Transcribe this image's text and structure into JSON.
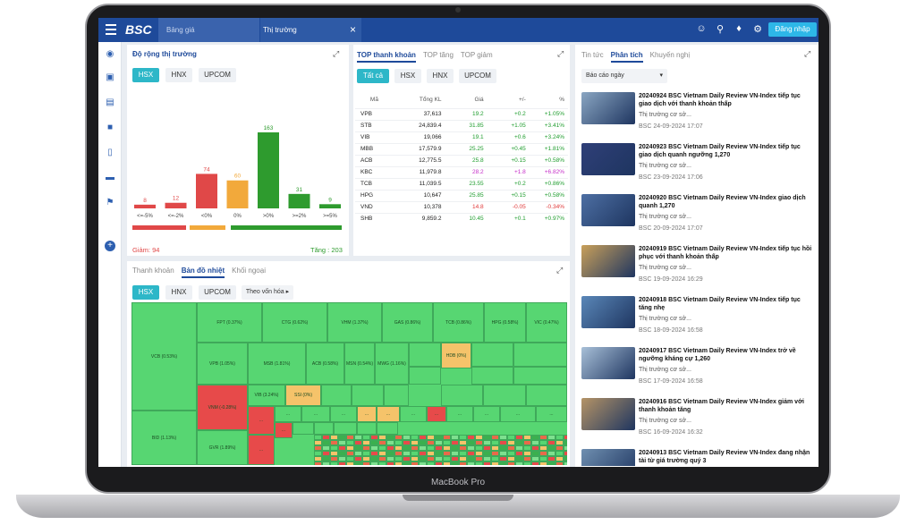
{
  "device": {
    "label": "MacBook Pro"
  },
  "topbar": {
    "logo": "BSC",
    "tabs": [
      {
        "label": "Bảng giá"
      },
      {
        "label": "Thị trường"
      }
    ],
    "close_icon": "close-icon",
    "icons": [
      "user-icon",
      "search-icon",
      "bell-icon",
      "gear-icon"
    ],
    "login_label": "Đăng nhập",
    "colors": {
      "bar": "#1e4a9a",
      "accent": "#2db7e8"
    }
  },
  "market_breadth": {
    "title": "Độ rộng thị trường",
    "exchanges": [
      "HSX",
      "HNX",
      "UPCOM"
    ],
    "categories": [
      "<=-5%",
      "<=-2%",
      "<0%",
      "0%",
      ">0%",
      ">=2%",
      ">=5%"
    ],
    "values": [
      8,
      12,
      74,
      60,
      163,
      31,
      9
    ],
    "decline_label": "Giảm: 94",
    "advance_label": "Tăng : 203"
  },
  "chart_data": {
    "type": "bar",
    "title": "Độ rộng thị trường",
    "categories": [
      "<=-5%",
      "<=-2%",
      "<0%",
      "0%",
      ">0%",
      ">=2%",
      ">=5%"
    ],
    "values": [
      8,
      12,
      74,
      60,
      163,
      31,
      9
    ],
    "colors": [
      "#e04848",
      "#e04848",
      "#e04848",
      "#f2a93b",
      "#2e9b2e",
      "#2e9b2e",
      "#2e9b2e"
    ]
  },
  "top_stocks": {
    "tabs": [
      "TOP thanh khoản",
      "TOP tăng",
      "TOP giảm"
    ],
    "filters": [
      "Tất cả",
      "HSX",
      "HNX",
      "UPCOM"
    ],
    "columns": [
      "Mã",
      "Tổng KL",
      "Giá",
      "+/-",
      "%"
    ],
    "rows": [
      [
        "VPB",
        "37,613",
        "19.2",
        "+0.2",
        "+1.05%",
        "g"
      ],
      [
        "STB",
        "24,839.4",
        "31.85",
        "+1.05",
        "+3.41%",
        "g"
      ],
      [
        "VIB",
        "19,066",
        "19.1",
        "+0.6",
        "+3.24%",
        "g"
      ],
      [
        "MBB",
        "17,579.9",
        "25.25",
        "+0.45",
        "+1.81%",
        "g"
      ],
      [
        "ACB",
        "12,775.5",
        "25.8",
        "+0.15",
        "+0.58%",
        "g"
      ],
      [
        "KBC",
        "11,979.8",
        "28.2",
        "+1.8",
        "+6.82%",
        "p"
      ],
      [
        "TCB",
        "11,039.5",
        "23.55",
        "+0.2",
        "+0.86%",
        "g"
      ],
      [
        "HPG",
        "10,647",
        "25.85",
        "+0.15",
        "+0.58%",
        "g"
      ],
      [
        "VND",
        "10,378",
        "14.8",
        "-0.05",
        "-0.34%",
        "r"
      ],
      [
        "SHB",
        "9,859.2",
        "10.45",
        "+0.1",
        "+0.97%",
        "g"
      ]
    ]
  },
  "heatmap": {
    "tabs": [
      "Thanh khoản",
      "Bản đồ nhiệt",
      "Khối ngoại"
    ],
    "exchanges": [
      "HSX",
      "HNX",
      "UPCOM"
    ],
    "sort_label": "Theo vốn hóa",
    "cells": [
      "VCB (0.53%)",
      "FPT (0.37%)",
      "CTG (0.62%)",
      "VHM (1.37%)",
      "GAS (0.86%)",
      "TCB (0.86%)",
      "HPG (0.58%)",
      "VIC (0.47%)",
      "VPB (1.05%)",
      "MSB (1.81%)",
      "ACB (0.58%)",
      "MSN (0.54%)",
      "MWG (1.16%)",
      "HDB (0%)",
      "VIB (3.24%)",
      "SSI (0%)",
      "VNM (-0.28%)",
      "BID (1.13%)",
      "GVR (1.89%)"
    ],
    "ellipsis": "..."
  },
  "news": {
    "tabs": [
      "Tin tức",
      "Phân tích",
      "Khuyến nghị"
    ],
    "filter_label": "Báo cáo ngày",
    "items": [
      {
        "title": "20240924 BSC Vietnam Daily Review VN-Index tiếp tục giao dịch với thanh khoản thấp",
        "cat": "Thị trường cơ sở...",
        "meta": "BSC  24-09-2024 17:07"
      },
      {
        "title": "20240923 BSC Vietnam Daily Review VN-Index tiếp tục giao dịch quanh ngưỡng 1,270",
        "cat": "Thị trường cơ sở...",
        "meta": "BSC  23-09-2024 17:06"
      },
      {
        "title": "20240920 BSC Vietnam Daily Review VN-Index giao dịch quanh 1,270",
        "cat": "Thị trường cơ sở...",
        "meta": "BSC  20-09-2024 17:07"
      },
      {
        "title": "20240919 BSC Vietnam Daily Review VN-Index tiếp tục hồi phục với thanh khoản thấp",
        "cat": "Thị trường cơ sở...",
        "meta": "BSC  19-09-2024 16:29"
      },
      {
        "title": "20240918 BSC Vietnam Daily Review VN-Index tiếp tục tăng nhẹ",
        "cat": "Thị trường cơ sở...",
        "meta": "BSC  18-09-2024 16:58"
      },
      {
        "title": "20240917 BSC Vietnam Daily Review VN-Index trở về ngưỡng kháng cự 1,260",
        "cat": "Thị trường cơ sở...",
        "meta": "BSC  17-09-2024 16:58"
      },
      {
        "title": "20240916 BSC Vietnam Daily Review VN-Index giảm với thanh khoản tăng",
        "cat": "Thị trường cơ sở...",
        "meta": "BSC  16-09-2024 16:32"
      },
      {
        "title": "20240913 BSC Vietnam Daily Review VN-Index đang nhận tài từ giá trường quý 3",
        "cat": "",
        "meta": ""
      }
    ]
  }
}
